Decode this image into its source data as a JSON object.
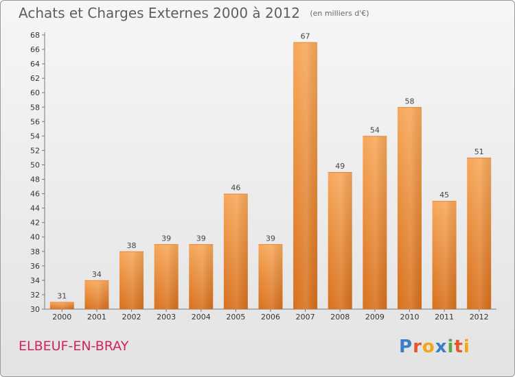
{
  "header": {
    "title": "Achats et Charges Externes 2000 à 2012",
    "unit": "(en milliers d'€)"
  },
  "footer": {
    "commune": "ELBEUF-EN-BRAY",
    "logo_letters": [
      "P",
      "r",
      "o",
      "x",
      "i",
      "t",
      "i"
    ],
    "logo_colors": [
      "#3a7ec6",
      "#e4572e",
      "#f2a516",
      "#3a7ec6",
      "#5aa844",
      "#e4572e",
      "#f2a516"
    ]
  },
  "chart_data": {
    "type": "bar",
    "title": "Achats et Charges Externes 2000 à 2012",
    "categories": [
      "2000",
      "2001",
      "2002",
      "2003",
      "2004",
      "2005",
      "2006",
      "2007",
      "2008",
      "2009",
      "2010",
      "2011",
      "2012"
    ],
    "values": [
      31,
      34,
      38,
      39,
      39,
      46,
      39,
      67,
      49,
      54,
      58,
      45,
      51
    ],
    "ylim": [
      30,
      68
    ],
    "yticks": [
      30,
      32,
      34,
      36,
      38,
      40,
      42,
      44,
      46,
      48,
      50,
      52,
      54,
      56,
      58,
      60,
      62,
      64,
      66,
      68
    ],
    "grid": false,
    "bar_color": "#f0953e"
  }
}
